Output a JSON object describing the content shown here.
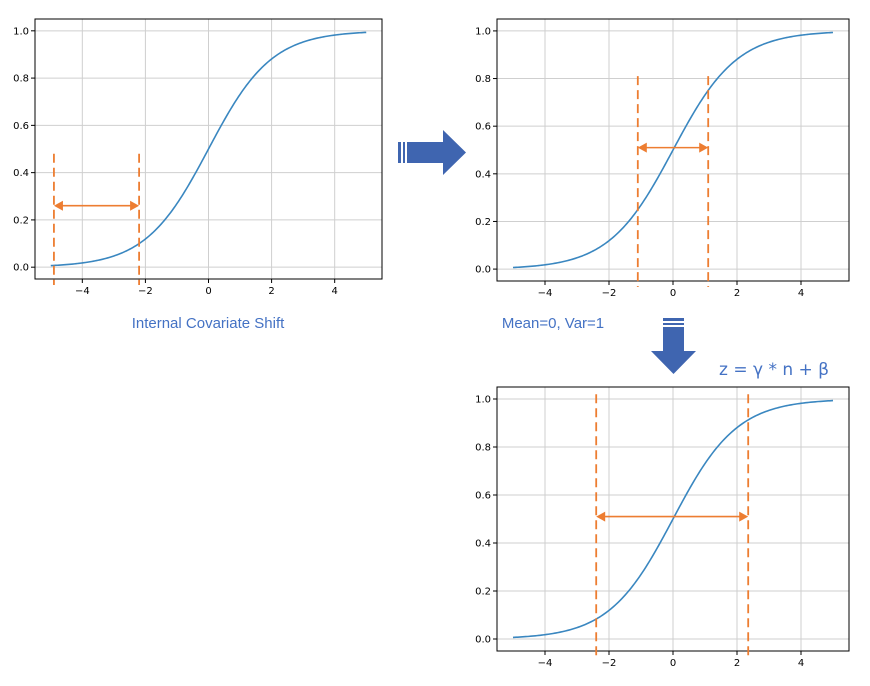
{
  "colors": {
    "curve": "#3a87c0",
    "marker": "#ed7d31",
    "arrow": "#3f65b0",
    "caption": "#4472c4",
    "grid": "#cfcfcf",
    "axis": "#000000"
  },
  "captions": {
    "internal_covariate_shift": "Internal Covariate Shift",
    "mean_var": "Mean=0, Var=1",
    "formula": "z = γ * n  + β"
  },
  "icons": {
    "arrow_right": "block-arrow-right-icon",
    "arrow_down": "block-arrow-down-icon"
  },
  "chart_data": [
    {
      "type": "line",
      "function": "sigmoid",
      "x_range": [
        -5,
        5
      ],
      "xlim": [
        -5.5,
        5.5
      ],
      "ylim": [
        -0.05,
        1.05
      ],
      "xticks": [
        -4,
        -2,
        0,
        2,
        4
      ],
      "yticks": [
        0.0,
        0.2,
        0.4,
        0.6,
        0.8,
        1.0
      ],
      "xtick_labels": [
        "−4",
        "−2",
        "0",
        "2",
        "4"
      ],
      "ytick_labels": [
        "0.0",
        "0.2",
        "0.4",
        "0.6",
        "0.8",
        "1.0"
      ],
      "grid": true,
      "vlines_x": [
        -4.9,
        -2.2
      ],
      "vline_y": [
        -0.05,
        0.48
      ],
      "span_arrow": {
        "x": [
          -4.9,
          -2.2
        ],
        "y": 0.26
      }
    },
    {
      "type": "line",
      "function": "sigmoid",
      "x_range": [
        -5,
        5
      ],
      "xlim": [
        -5.5,
        5.5
      ],
      "ylim": [
        -0.05,
        1.05
      ],
      "xticks": [
        -4,
        -2,
        0,
        2,
        4
      ],
      "yticks": [
        0.0,
        0.2,
        0.4,
        0.6,
        0.8,
        1.0
      ],
      "xtick_labels": [
        "−4",
        "−2",
        "0",
        "2",
        "4"
      ],
      "ytick_labels": [
        "0.0",
        "0.2",
        "0.4",
        "0.6",
        "0.8",
        "1.0"
      ],
      "grid": true,
      "vlines_x": [
        -1.1,
        1.1
      ],
      "vline_y": [
        -0.05,
        0.81
      ],
      "span_arrow": {
        "x": [
          -1.1,
          1.1
        ],
        "y": 0.51
      }
    },
    {
      "type": "line",
      "function": "sigmoid",
      "x_range": [
        -5,
        5
      ],
      "xlim": [
        -5.5,
        5.5
      ],
      "ylim": [
        -0.05,
        1.05
      ],
      "xticks": [
        -4,
        -2,
        0,
        2,
        4
      ],
      "yticks": [
        0.0,
        0.2,
        0.4,
        0.6,
        0.8,
        1.0
      ],
      "xtick_labels": [
        "−4",
        "−2",
        "0",
        "2",
        "4"
      ],
      "ytick_labels": [
        "0.0",
        "0.2",
        "0.4",
        "0.6",
        "0.8",
        "1.0"
      ],
      "grid": true,
      "vlines_x": [
        -2.4,
        2.35
      ],
      "vline_y": [
        -0.05,
        1.02
      ],
      "span_arrow": {
        "x": [
          -2.4,
          2.35
        ],
        "y": 0.51
      }
    }
  ]
}
